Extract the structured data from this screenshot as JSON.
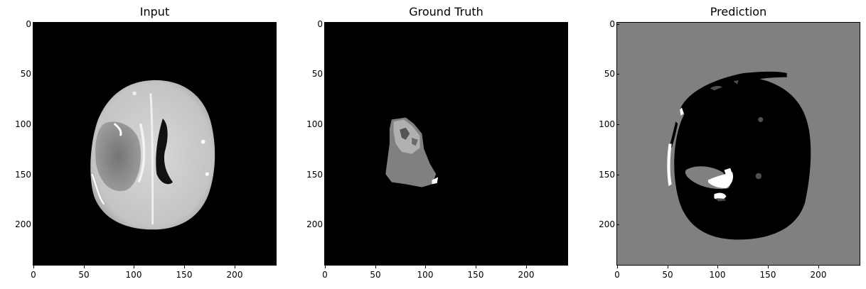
{
  "panels": [
    {
      "title": "Input"
    },
    {
      "title": "Ground Truth"
    },
    {
      "title": "Prediction"
    }
  ],
  "axis": {
    "y_ticks": [
      "0",
      "50",
      "100",
      "150",
      "200"
    ],
    "x_ticks": [
      "0",
      "50",
      "100",
      "150",
      "200"
    ]
  },
  "colors": {
    "background_black": "#000000",
    "prediction_gray": "#808080",
    "label_light_gray": "#b0b0b0",
    "label_mid_gray": "#808080",
    "label_dark_gray": "#505050",
    "white": "#ffffff"
  }
}
